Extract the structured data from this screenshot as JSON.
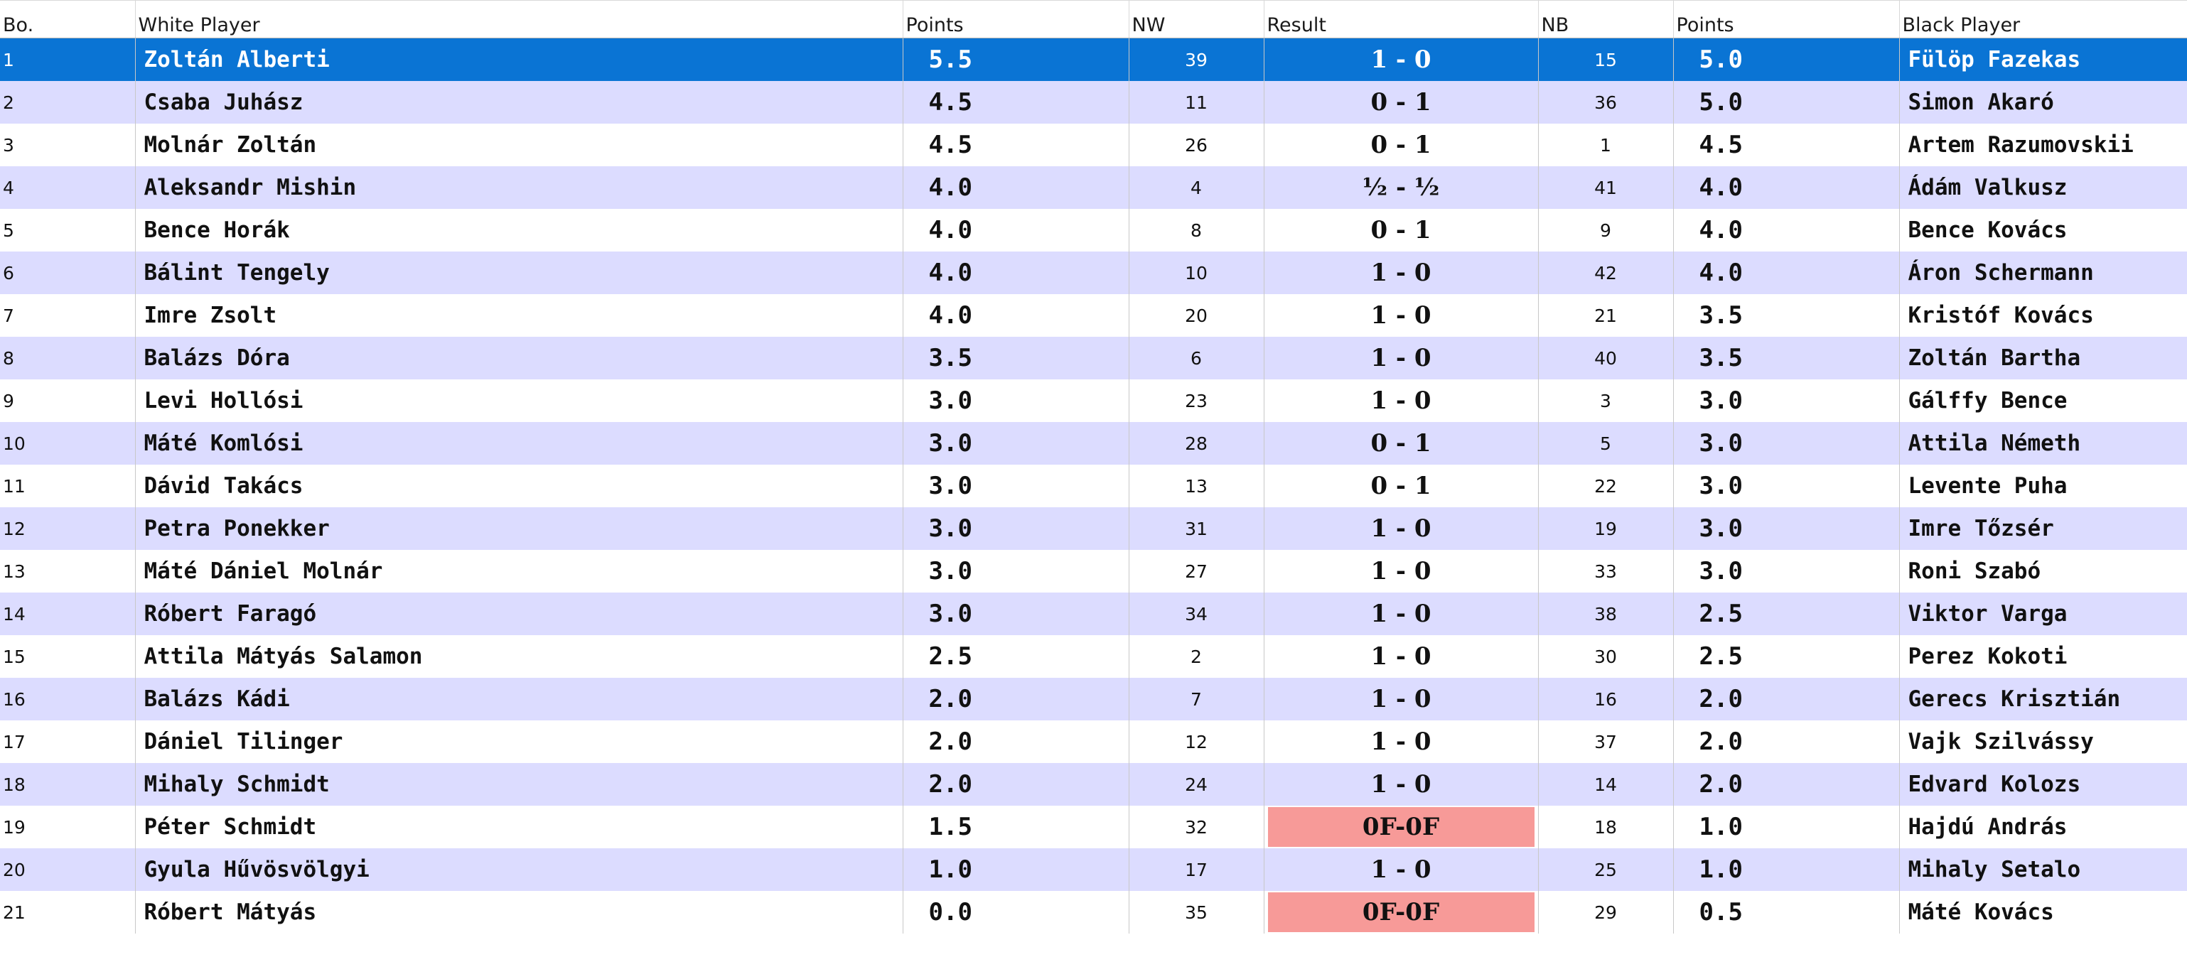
{
  "columns": {
    "board": "Bo.",
    "white_player": "White Player",
    "white_points": "Points",
    "nw": "NW",
    "result": "Result",
    "nb": "NB",
    "black_points": "Points",
    "black_player": "Black Player"
  },
  "colors": {
    "selected_row": "#0a74d4",
    "alt_row": "#dcdcff",
    "forfeit_cell": "#f79a98"
  },
  "selected_board": "1",
  "pairings": [
    {
      "board": "1",
      "white": "Zoltán Alberti",
      "white_pts": "5.5",
      "nw": "39",
      "result": "1 - 0",
      "nb": "15",
      "black_pts": "5.0",
      "black": "Fülöp Fazekas",
      "forfeit": false
    },
    {
      "board": "2",
      "white": "Csaba Juhász",
      "white_pts": "4.5",
      "nw": "11",
      "result": "0 - 1",
      "nb": "36",
      "black_pts": "5.0",
      "black": "Simon Akaró",
      "forfeit": false
    },
    {
      "board": "3",
      "white": "Molnár Zoltán",
      "white_pts": "4.5",
      "nw": "26",
      "result": "0 - 1",
      "nb": "1",
      "black_pts": "4.5",
      "black": "Artem Razumovskii",
      "forfeit": false
    },
    {
      "board": "4",
      "white": "Aleksandr Mishin",
      "white_pts": "4.0",
      "nw": "4",
      "result": "½ - ½",
      "nb": "41",
      "black_pts": "4.0",
      "black": "Ádám Valkusz",
      "forfeit": false
    },
    {
      "board": "5",
      "white": "Bence Horák",
      "white_pts": "4.0",
      "nw": "8",
      "result": "0 - 1",
      "nb": "9",
      "black_pts": "4.0",
      "black": "Bence Kovács",
      "forfeit": false
    },
    {
      "board": "6",
      "white": "Bálint Tengely",
      "white_pts": "4.0",
      "nw": "10",
      "result": "1 - 0",
      "nb": "42",
      "black_pts": "4.0",
      "black": "Áron Schermann",
      "forfeit": false
    },
    {
      "board": "7",
      "white": "Imre Zsolt",
      "white_pts": "4.0",
      "nw": "20",
      "result": "1 - 0",
      "nb": "21",
      "black_pts": "3.5",
      "black": "Kristóf Kovács",
      "forfeit": false
    },
    {
      "board": "8",
      "white": "Balázs Dóra",
      "white_pts": "3.5",
      "nw": "6",
      "result": "1 - 0",
      "nb": "40",
      "black_pts": "3.5",
      "black": "Zoltán Bartha",
      "forfeit": false
    },
    {
      "board": "9",
      "white": "Levi Hollósi",
      "white_pts": "3.0",
      "nw": "23",
      "result": "1 - 0",
      "nb": "3",
      "black_pts": "3.0",
      "black": "Gálffy Bence",
      "forfeit": false
    },
    {
      "board": "10",
      "white": "Máté Komlósi",
      "white_pts": "3.0",
      "nw": "28",
      "result": "0 - 1",
      "nb": "5",
      "black_pts": "3.0",
      "black": "Attila Németh",
      "forfeit": false
    },
    {
      "board": "11",
      "white": "Dávid Takács",
      "white_pts": "3.0",
      "nw": "13",
      "result": "0 - 1",
      "nb": "22",
      "black_pts": "3.0",
      "black": "Levente Puha",
      "forfeit": false
    },
    {
      "board": "12",
      "white": "Petra Ponekker",
      "white_pts": "3.0",
      "nw": "31",
      "result": "1 - 0",
      "nb": "19",
      "black_pts": "3.0",
      "black": "Imre Tőzsér",
      "forfeit": false
    },
    {
      "board": "13",
      "white": "Máté Dániel Molnár",
      "white_pts": "3.0",
      "nw": "27",
      "result": "1 - 0",
      "nb": "33",
      "black_pts": "3.0",
      "black": "Roni Szabó",
      "forfeit": false
    },
    {
      "board": "14",
      "white": "Róbert Faragó",
      "white_pts": "3.0",
      "nw": "34",
      "result": "1 - 0",
      "nb": "38",
      "black_pts": "2.5",
      "black": "Viktor Varga",
      "forfeit": false
    },
    {
      "board": "15",
      "white": "Attila Mátyás Salamon",
      "white_pts": "2.5",
      "nw": "2",
      "result": "1 - 0",
      "nb": "30",
      "black_pts": "2.5",
      "black": "Perez Kokoti",
      "forfeit": false
    },
    {
      "board": "16",
      "white": "Balázs Kádi",
      "white_pts": "2.0",
      "nw": "7",
      "result": "1 - 0",
      "nb": "16",
      "black_pts": "2.0",
      "black": "Gerecs Krisztián",
      "forfeit": false
    },
    {
      "board": "17",
      "white": "Dániel Tilinger",
      "white_pts": "2.0",
      "nw": "12",
      "result": "1 - 0",
      "nb": "37",
      "black_pts": "2.0",
      "black": "Vajk Szilvássy",
      "forfeit": false
    },
    {
      "board": "18",
      "white": "Mihaly Schmidt",
      "white_pts": "2.0",
      "nw": "24",
      "result": "1 - 0",
      "nb": "14",
      "black_pts": "2.0",
      "black": "Edvard Kolozs",
      "forfeit": false
    },
    {
      "board": "19",
      "white": "Péter Schmidt",
      "white_pts": "1.5",
      "nw": "32",
      "result": "0F-0F",
      "nb": "18",
      "black_pts": "1.0",
      "black": "Hajdú András",
      "forfeit": true
    },
    {
      "board": "20",
      "white": "Gyula Hűvösvölgyi",
      "white_pts": "1.0",
      "nw": "17",
      "result": "1 - 0",
      "nb": "25",
      "black_pts": "1.0",
      "black": "Mihaly Setalo",
      "forfeit": false
    },
    {
      "board": "21",
      "white": "Róbert Mátyás",
      "white_pts": "0.0",
      "nw": "35",
      "result": "0F-0F",
      "nb": "29",
      "black_pts": "0.5",
      "black": "Máté Kovács",
      "forfeit": true
    }
  ]
}
